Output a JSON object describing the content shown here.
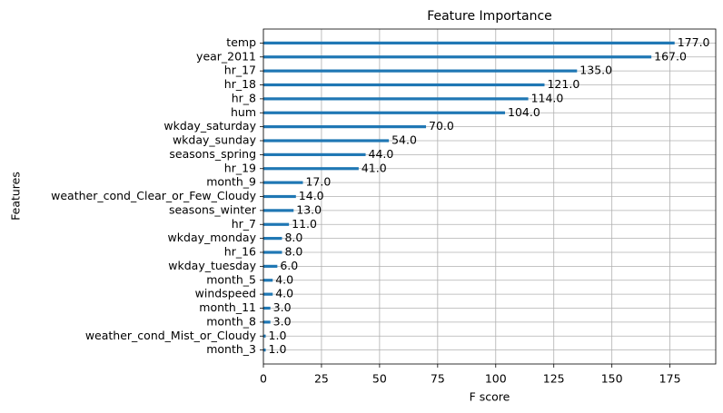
{
  "chart_data": {
    "type": "barh",
    "title": "Feature Importance",
    "x_label": "F score",
    "y_label": "Features",
    "categories": [
      "temp",
      "year_2011",
      "hr_17",
      "hr_18",
      "hr_8",
      "hum",
      "wkday_saturday",
      "wkday_sunday",
      "seasons_spring",
      "hr_19",
      "month_9",
      "weather_cond_Clear_or_Few_Cloudy",
      "seasons_winter",
      "hr_7",
      "wkday_monday",
      "hr_16",
      "wkday_tuesday",
      "month_5",
      "windspeed",
      "month_11",
      "month_8",
      "weather_cond_Mist_or_Cloudy",
      "month_3"
    ],
    "values": [
      177,
      167,
      135,
      121,
      114,
      104,
      70,
      54,
      44,
      41,
      17,
      14,
      13,
      11,
      8,
      8,
      6,
      4,
      4,
      3,
      3,
      1,
      1
    ],
    "value_labels": [
      "177.0",
      "167.0",
      "135.0",
      "121.0",
      "114.0",
      "104.0",
      "70.0",
      "54.0",
      "44.0",
      "41.0",
      "17.0",
      "14.0",
      "13.0",
      "11.0",
      "8.0",
      "8.0",
      "6.0",
      "4.0",
      "4.0",
      "3.0",
      "3.0",
      "1.0",
      "1.0"
    ],
    "color": "#1f77b4",
    "xlim": [
      0,
      194.7
    ],
    "xticks": [
      0,
      25,
      50,
      75,
      100,
      125,
      150,
      175
    ],
    "grid": true
  }
}
